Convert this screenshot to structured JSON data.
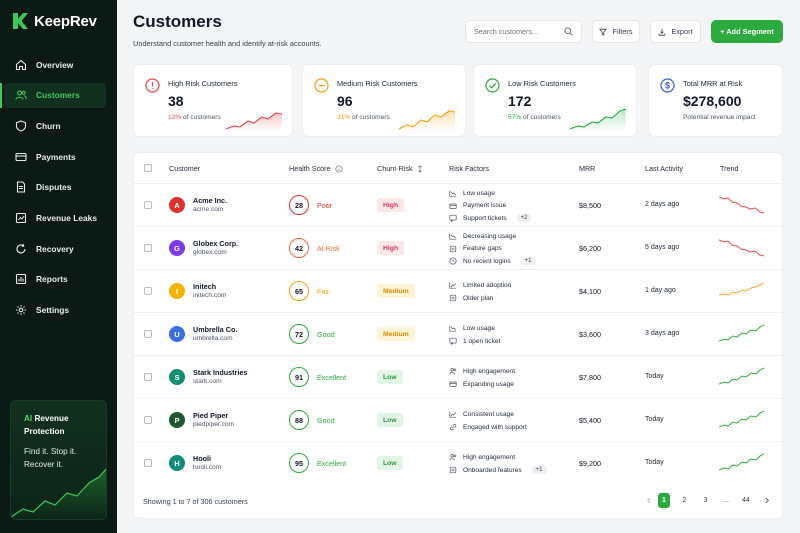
{
  "brand": {
    "name": "KeepRev"
  },
  "nav": {
    "items": [
      {
        "label": "Overview",
        "icon": "home-icon"
      },
      {
        "label": "Customers",
        "icon": "users-icon"
      },
      {
        "label": "Churn",
        "icon": "shield-icon"
      },
      {
        "label": "Payments",
        "icon": "card-icon"
      },
      {
        "label": "Disputes",
        "icon": "document-icon"
      },
      {
        "label": "Revenue Leaks",
        "icon": "leak-icon"
      },
      {
        "label": "Recovery",
        "icon": "refresh-icon"
      },
      {
        "label": "Reports",
        "icon": "reports-icon"
      },
      {
        "label": "Settings",
        "icon": "gear-icon"
      }
    ],
    "active": "Customers"
  },
  "promo": {
    "ai": "AI",
    "title": "Revenue Protection",
    "line1": "Find it. Stop it.",
    "line2": "Recover it."
  },
  "header": {
    "title": "Customers",
    "subtitle": "Understand customer health and identify at-risk accounts.",
    "search_placeholder": "Search customers...",
    "filters_label": "Filters",
    "export_label": "Export",
    "add_segment_label": "+ Add Segment"
  },
  "stats": [
    {
      "label": "High Risk Customers",
      "value": "38",
      "pct": "12%",
      "pct_text": "of customers",
      "color": "#e5484d"
    },
    {
      "label": "Medium Risk Customers",
      "value": "96",
      "pct": "31%",
      "pct_text": "of customers",
      "color": "#f59e0b"
    },
    {
      "label": "Low Risk Customers",
      "value": "172",
      "pct": "57%",
      "pct_text": "of customers",
      "color": "#2daa3f"
    },
    {
      "label": "Total MRR at Risk",
      "value": "$278,600",
      "sub": "Potential revenue impact",
      "color": "#3b5bdb"
    }
  ],
  "table": {
    "headers": {
      "customer": "Customer",
      "health": "Health Score",
      "churn": "Churn Risk",
      "factors": "Risk Factors",
      "mrr": "MRR",
      "activity": "Last Activity",
      "trend": "Trend"
    },
    "rows": [
      {
        "initial": "A",
        "avatar_color": "#e03131",
        "name": "Acme Inc.",
        "domain": "acme.com",
        "score": "28",
        "score_label": "Poor",
        "score_color": "#e03131",
        "risk": "High",
        "risk_level": "high",
        "factors": [
          "Low usage",
          "Payment issue",
          "Support tickets"
        ],
        "more": "+2",
        "mrr": "$8,500",
        "activity": "2 days ago",
        "trend": "down"
      },
      {
        "initial": "G",
        "avatar_color": "#7c3aed",
        "name": "Globex Corp.",
        "domain": "globex.com",
        "score": "42",
        "score_label": "At Risk",
        "score_color": "#ef6c3a",
        "risk": "High",
        "risk_level": "high",
        "factors": [
          "Decreasing usage",
          "Feature gaps",
          "No recent logins"
        ],
        "more": "+1",
        "mrr": "$6,200",
        "activity": "5 days ago",
        "trend": "down"
      },
      {
        "initial": "I",
        "avatar_color": "#f4b400",
        "name": "Initech",
        "domain": "initech.com",
        "score": "65",
        "score_label": "Fair",
        "score_color": "#f59e0b",
        "risk": "Medium",
        "risk_level": "medium",
        "factors": [
          "Limited adoption",
          "Older plan"
        ],
        "more": "",
        "mrr": "$4,100",
        "activity": "1 day ago",
        "trend": "flat"
      },
      {
        "initial": "U",
        "avatar_color": "#3b6fe0",
        "name": "Umbrella Co.",
        "domain": "umbrella.com",
        "score": "72",
        "score_label": "Good",
        "score_color": "#2daa3f",
        "risk": "Medium",
        "risk_level": "medium",
        "factors": [
          "Low usage",
          "1 open ticket"
        ],
        "more": "",
        "mrr": "$3,600",
        "activity": "3 days ago",
        "trend": "up"
      },
      {
        "initial": "S",
        "avatar_color": "#138a72",
        "name": "Stark Industries",
        "domain": "stark.com",
        "score": "91",
        "score_label": "Excellent",
        "score_color": "#2daa3f",
        "risk": "Low",
        "risk_level": "low",
        "factors": [
          "High engagement",
          "Expanding usage"
        ],
        "more": "",
        "mrr": "$7,800",
        "activity": "Today",
        "trend": "up"
      },
      {
        "initial": "P",
        "avatar_color": "#1e5631",
        "name": "Pied Piper",
        "domain": "piedpiper.com",
        "score": "88",
        "score_label": "Good",
        "score_color": "#2daa3f",
        "risk": "Low",
        "risk_level": "low",
        "factors": [
          "Consistent usage",
          "Engaged with support"
        ],
        "more": "",
        "mrr": "$5,400",
        "activity": "Today",
        "trend": "up"
      },
      {
        "initial": "H",
        "avatar_color": "#0f8a7a",
        "name": "Hooli",
        "domain": "hooli.com",
        "score": "95",
        "score_label": "Excellent",
        "score_color": "#2daa3f",
        "risk": "Low",
        "risk_level": "low",
        "factors": [
          "High engagement",
          "Onboarded features"
        ],
        "more": "+1",
        "mrr": "$9,200",
        "activity": "Today",
        "trend": "up"
      }
    ],
    "footer": "Showing 1 to 7 of 306 customers",
    "pages": [
      "1",
      "2",
      "3",
      "...",
      "44"
    ],
    "current_page": "1"
  }
}
